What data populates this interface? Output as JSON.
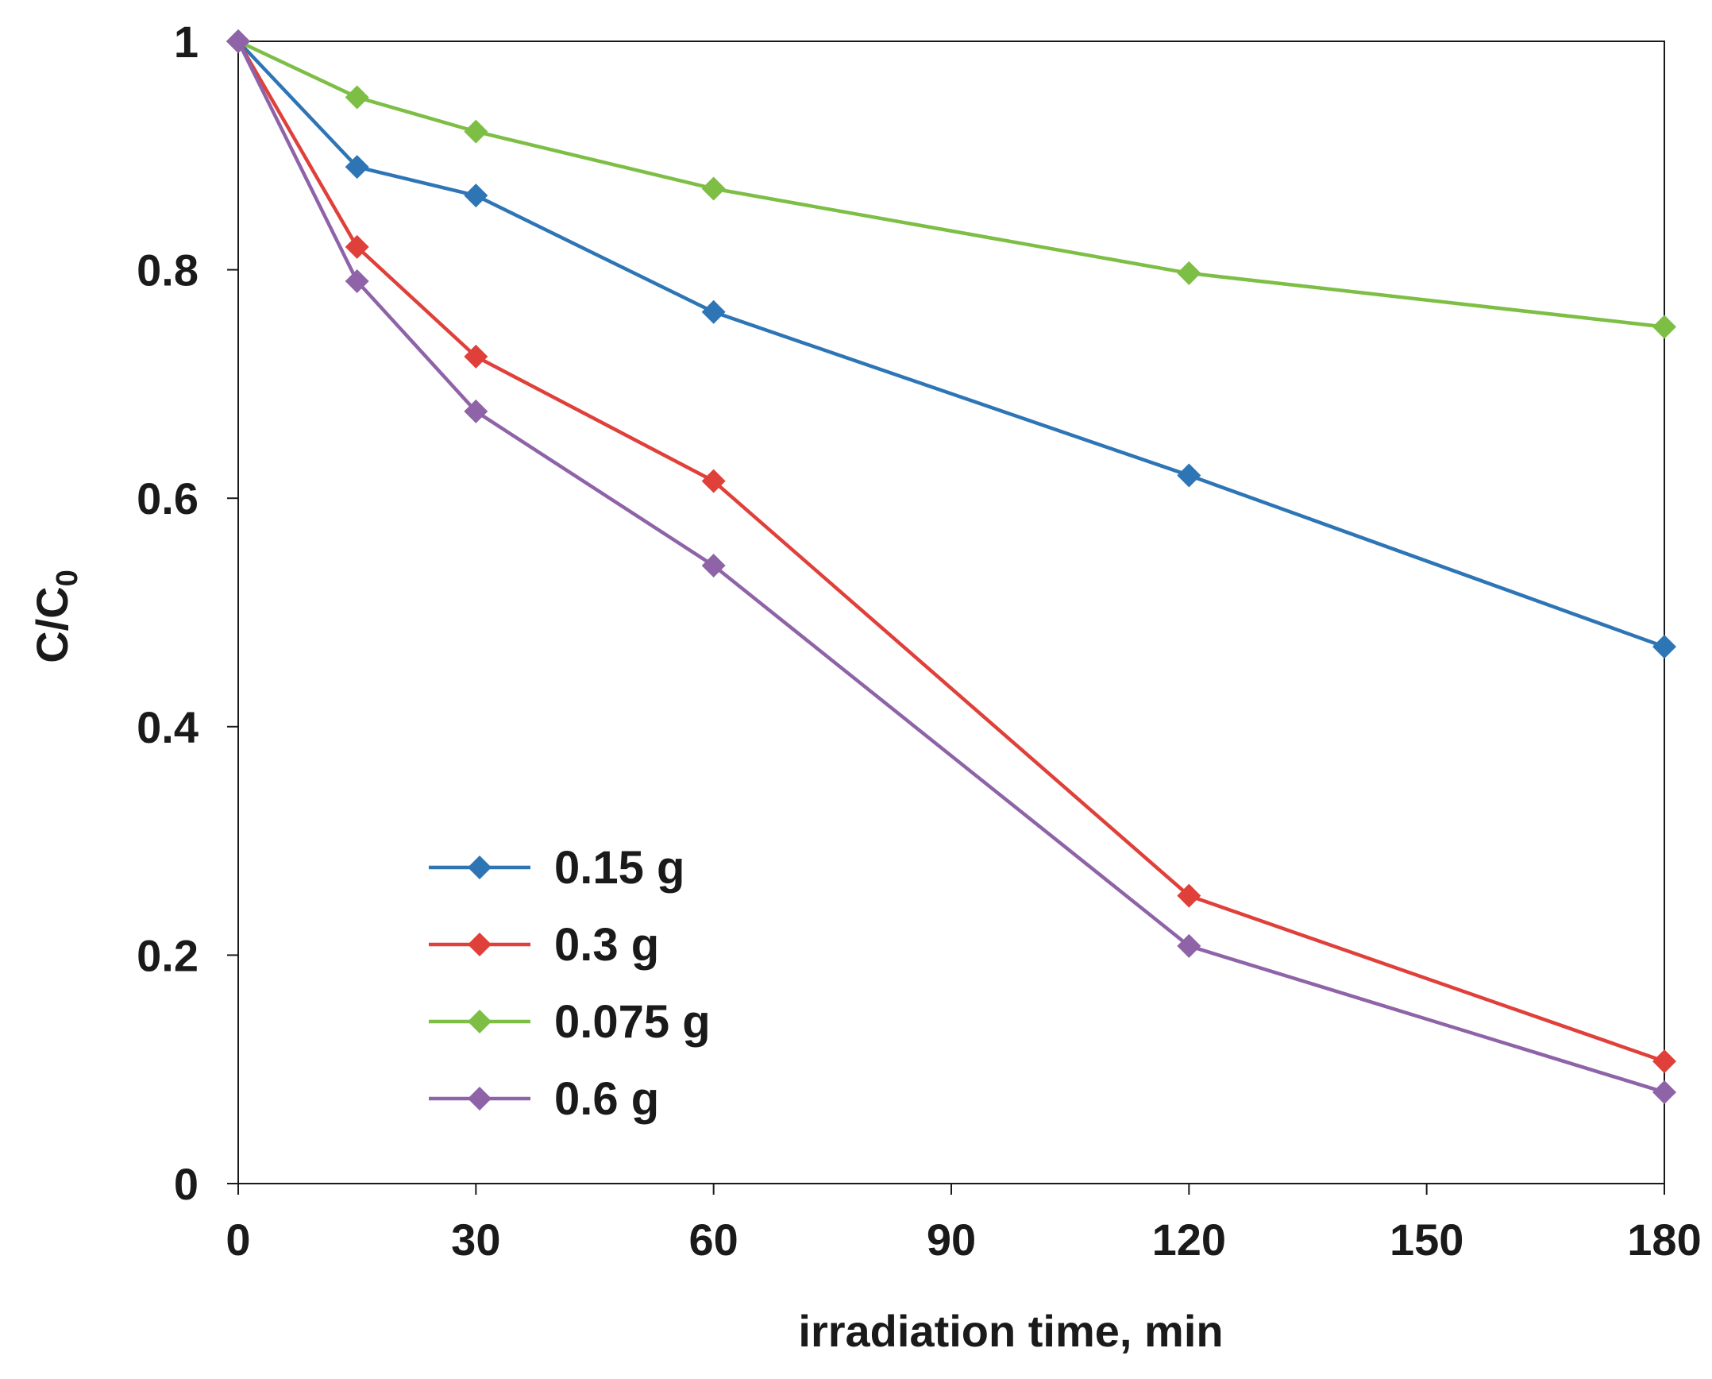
{
  "chart_data": {
    "type": "line",
    "title": "",
    "xlabel": "irradiation time, min",
    "ylabel_main": "C/C",
    "ylabel_sub": "0",
    "xlim": [
      0,
      180
    ],
    "ylim": [
      0,
      1
    ],
    "xticks": [
      0,
      30,
      60,
      90,
      120,
      150,
      180
    ],
    "yticks": [
      0,
      0.2,
      0.4,
      0.6,
      0.8,
      1
    ],
    "ytick_labels": [
      "0",
      "0.2",
      "0.4",
      "0.6",
      "0.8",
      "1"
    ],
    "grid": false,
    "legend_position": "lower-left",
    "series": [
      {
        "name": "0.15 g",
        "color": "#2E75B6",
        "x": [
          0,
          15,
          30,
          60,
          120,
          180
        ],
        "values": [
          1.0,
          0.89,
          0.865,
          0.763,
          0.62,
          0.47
        ]
      },
      {
        "name": "0.3 g",
        "color": "#E0403A",
        "x": [
          0,
          15,
          30,
          60,
          120,
          180
        ],
        "values": [
          1.0,
          0.82,
          0.724,
          0.615,
          0.252,
          0.107
        ]
      },
      {
        "name": "0.075 g",
        "color": "#7DBE45",
        "x": [
          0,
          15,
          30,
          60,
          120,
          180
        ],
        "values": [
          1.0,
          0.951,
          0.921,
          0.871,
          0.797,
          0.75
        ]
      },
      {
        "name": "0.6 g",
        "color": "#8E63A8",
        "x": [
          0,
          15,
          30,
          60,
          120,
          180
        ],
        "values": [
          1.0,
          0.79,
          0.676,
          0.541,
          0.208,
          0.08
        ]
      }
    ]
  }
}
